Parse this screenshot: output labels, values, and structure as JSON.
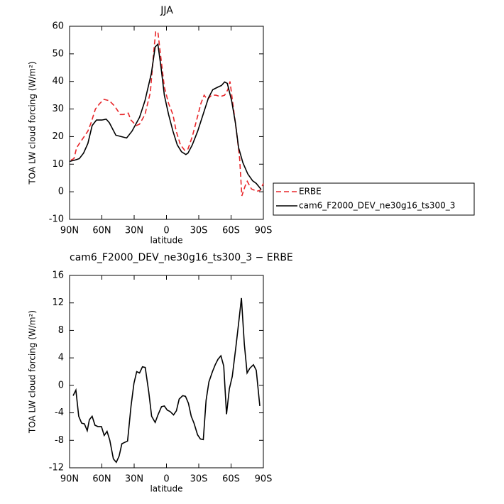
{
  "chart_data": [
    {
      "type": "line",
      "title": "JJA",
      "xlabel": "latitude",
      "ylabel": "TOA LW cloud forcing (W/m²)",
      "xlim": [
        90,
        -90
      ],
      "xticks": [
        {
          "value": 90,
          "label": "90N"
        },
        {
          "value": 60,
          "label": "60N"
        },
        {
          "value": 30,
          "label": "30N"
        },
        0,
        {
          "value": -30,
          "label": "30S"
        },
        {
          "value": -60,
          "label": "60S"
        },
        {
          "value": -90,
          "label": "90S"
        }
      ],
      "ylim": [
        -10,
        60
      ],
      "yticks": [
        -10,
        0,
        10,
        20,
        30,
        40,
        50,
        60
      ],
      "legend": "right",
      "series": [
        {
          "name": "ERBE",
          "color": "#e8262a",
          "dash": true,
          "x": [
            88.7,
            86,
            83.4,
            80,
            73,
            70,
            66,
            62,
            58,
            53,
            48,
            43,
            40,
            35.5,
            33,
            28,
            25,
            20,
            15,
            12,
            10,
            8,
            5,
            2,
            -2,
            -6,
            -9,
            -13,
            -17,
            -20,
            -24,
            -28,
            -32,
            -35,
            -38,
            -42,
            -46,
            -50,
            -54,
            -57,
            -59,
            -62,
            -65,
            -68,
            -70,
            -73,
            -75,
            -79,
            -84,
            -87,
            -90
          ],
          "values": [
            11.5,
            12,
            16,
            18,
            22,
            25,
            30,
            32,
            33.5,
            33,
            31,
            28,
            28,
            28.5,
            26,
            24,
            24.5,
            28,
            36,
            50,
            58,
            58,
            48,
            38,
            32,
            28,
            22,
            17,
            15,
            15.5,
            20,
            26,
            32,
            35,
            33.5,
            35,
            35,
            34.5,
            35,
            37,
            40,
            31,
            22,
            12,
            -1.5,
            2,
            3.8,
            1,
            0.2,
            0.5,
            3
          ]
        },
        {
          "name": "cam6_F2000_DEV_ne30g16_ts300_3",
          "color": "#000000",
          "dash": false,
          "x": [
            90,
            85,
            81,
            77,
            73,
            69,
            65,
            60,
            56,
            53,
            47,
            37,
            32,
            25,
            20,
            14,
            10.5,
            8,
            5,
            2,
            -2,
            -6,
            -10,
            -14,
            -18,
            -20,
            -24,
            -29,
            -34,
            -39,
            -43,
            -48,
            -51,
            -54,
            -56.5,
            -60.5,
            -64,
            -67,
            -71,
            -75.5,
            -80,
            -83.5,
            -88
          ],
          "values": [
            11,
            11.5,
            12,
            14,
            17.5,
            24,
            26,
            26,
            26.3,
            25,
            20.5,
            19.5,
            22,
            27,
            33,
            43,
            52.5,
            53.5,
            45,
            35,
            28,
            22,
            17,
            14.5,
            13.5,
            14,
            17,
            22,
            28,
            34,
            37,
            38,
            38.5,
            39.8,
            39.3,
            33,
            25,
            16,
            10.5,
            6.5,
            4,
            3,
            0.8
          ]
        }
      ]
    },
    {
      "type": "line",
      "title": "cam6_F2000_DEV_ne30g16_ts300_3 − ERBE",
      "xlabel": "latitude",
      "ylabel": "TOA LW cloud forcing (W/m²)",
      "xlim": [
        90,
        -90
      ],
      "xticks": [
        {
          "value": 90,
          "label": "90N"
        },
        {
          "value": 60,
          "label": "60N"
        },
        {
          "value": 30,
          "label": "30N"
        },
        0,
        {
          "value": -30,
          "label": "30S"
        },
        {
          "value": -60,
          "label": "60S"
        },
        {
          "value": -90,
          "label": "90S"
        }
      ],
      "ylim": [
        -12,
        16
      ],
      "yticks": [
        -12,
        -8,
        -4,
        0,
        4,
        8,
        12,
        16
      ],
      "series": [
        {
          "color": "#000000",
          "x": [
            86.7,
            84.1,
            81.5,
            78.8,
            76.2,
            73.6,
            71.6,
            69.0,
            66.4,
            63.7,
            60.4,
            57.8,
            55.2,
            52.6,
            49.3,
            46.6,
            44.0,
            41.4,
            38.8,
            36.1,
            32.9,
            30.2,
            27.6,
            25.0,
            22.3,
            19.7,
            16.4,
            13.8,
            10.5,
            7.9,
            4.6,
            2.0,
            -0.7,
            -3.3,
            -6.6,
            -9.2,
            -11.8,
            -15.1,
            -17.7,
            -20.4,
            -23.0,
            -25.6,
            -28.9,
            -31.5,
            -34.2,
            -36.8,
            -39.4,
            -42.7,
            -45.3,
            -47.9,
            -50.6,
            -53.2,
            -55.8,
            -58.4,
            -61.1,
            -64.4,
            -67.0,
            -69.6,
            -72.3,
            -74.9,
            -77.5,
            -80.8,
            -83.4,
            -86.7
          ],
          "values": [
            -1.5,
            -0.7,
            -4.5,
            -5.5,
            -5.6,
            -6.6,
            -5,
            -4.5,
            -5.8,
            -6,
            -6,
            -7.3,
            -6.7,
            -8,
            -10.7,
            -11.2,
            -10.3,
            -8.5,
            -8.3,
            -8.1,
            -3,
            0.3,
            2,
            1.8,
            2.7,
            2.6,
            -1,
            -4.5,
            -5.4,
            -4.3,
            -3.1,
            -3,
            -3.6,
            -3.8,
            -4.3,
            -3.7,
            -2,
            -1.5,
            -1.6,
            -2.6,
            -4.5,
            -5.5,
            -7.2,
            -7.8,
            -7.9,
            -2.2,
            0.5,
            2,
            3,
            3.8,
            4.3,
            2.8,
            -4.2,
            -0.5,
            1.3,
            5.5,
            9,
            12.7,
            6,
            1.8,
            2.5,
            3,
            2.2,
            -3
          ]
        }
      ]
    }
  ]
}
